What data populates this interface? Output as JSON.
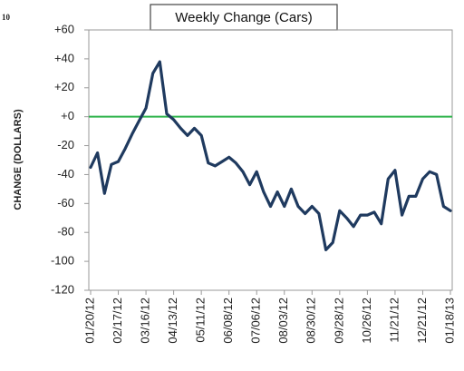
{
  "chart_data": {
    "type": "line",
    "corner_text": "10",
    "title": "Weekly Change (Cars)",
    "y_label": "CHANGE (DOLLARS)",
    "categories": [
      "01/20/12",
      null,
      null,
      null,
      "02/17/12",
      null,
      null,
      null,
      "03/16/12",
      null,
      null,
      null,
      "04/13/12",
      null,
      null,
      null,
      "05/11/12",
      null,
      null,
      null,
      "06/08/12",
      null,
      null,
      null,
      "07/06/12",
      null,
      null,
      null,
      "08/03/12",
      null,
      null,
      null,
      "08/30/12",
      null,
      null,
      null,
      "09/28/12",
      null,
      null,
      null,
      "10/26/12",
      null,
      null,
      null,
      "11/21/12",
      null,
      null,
      null,
      "12/21/12",
      null,
      null,
      null,
      "01/18/13"
    ],
    "values": [
      -35,
      -25,
      -53,
      -33,
      -31,
      -22,
      -12,
      -3,
      6,
      30,
      38,
      2,
      -2,
      -8,
      -13,
      -8,
      -13,
      -32,
      -34,
      -31,
      -28,
      -32,
      -38,
      -47,
      -38,
      -52,
      -62,
      -52,
      -62,
      -50,
      -62,
      -67,
      -62,
      -67,
      -92,
      -87,
      -65,
      -70,
      -76,
      -68,
      -68,
      -66,
      -74,
      -43,
      -37,
      -68,
      -55,
      -55,
      -43,
      -38,
      -40,
      -62,
      -65
    ],
    "color": "#1f3a5f",
    "reference_line": {
      "value": 0,
      "color": "#2db34a"
    },
    "ylim": [
      -120,
      60
    ],
    "yticks": [
      {
        "value": 60,
        "label": "+60"
      },
      {
        "value": 40,
        "label": "+40"
      },
      {
        "value": 20,
        "label": "+20"
      },
      {
        "value": 0,
        "label": "+0"
      },
      -20,
      -40,
      -60,
      -80,
      -100,
      -120
    ],
    "grid": false
  }
}
